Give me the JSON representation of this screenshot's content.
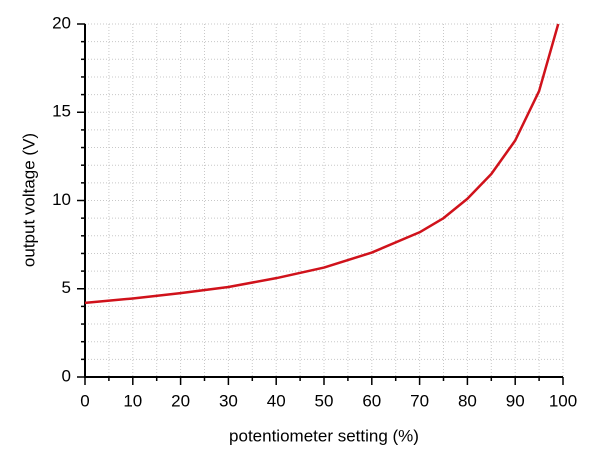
{
  "chart_data": {
    "type": "line",
    "x_label": "potentiometer setting (%)",
    "y_label": "output voltage (V)",
    "xlim": [
      0,
      100
    ],
    "ylim": [
      0,
      20
    ],
    "xticks": [
      0,
      10,
      20,
      30,
      40,
      50,
      60,
      70,
      80,
      90,
      100
    ],
    "yticks": [
      0,
      5,
      10,
      15,
      20
    ],
    "xminorticks": [
      5,
      15,
      25,
      35,
      45,
      55,
      65,
      75,
      85,
      95
    ],
    "yminorticks": [
      1,
      2,
      3,
      4,
      6,
      7,
      8,
      9,
      11,
      12,
      13,
      14,
      16,
      17,
      18,
      19
    ],
    "grid": true,
    "x": [
      0,
      10,
      20,
      30,
      40,
      50,
      60,
      70,
      75,
      80,
      85,
      90,
      95,
      99
    ],
    "series": [
      {
        "color": "#d0121b",
        "values": [
          4.2,
          4.45,
          4.75,
          5.1,
          5.6,
          6.2,
          7.05,
          8.2,
          9.0,
          10.1,
          11.5,
          13.4,
          16.2,
          20
        ]
      }
    ]
  }
}
